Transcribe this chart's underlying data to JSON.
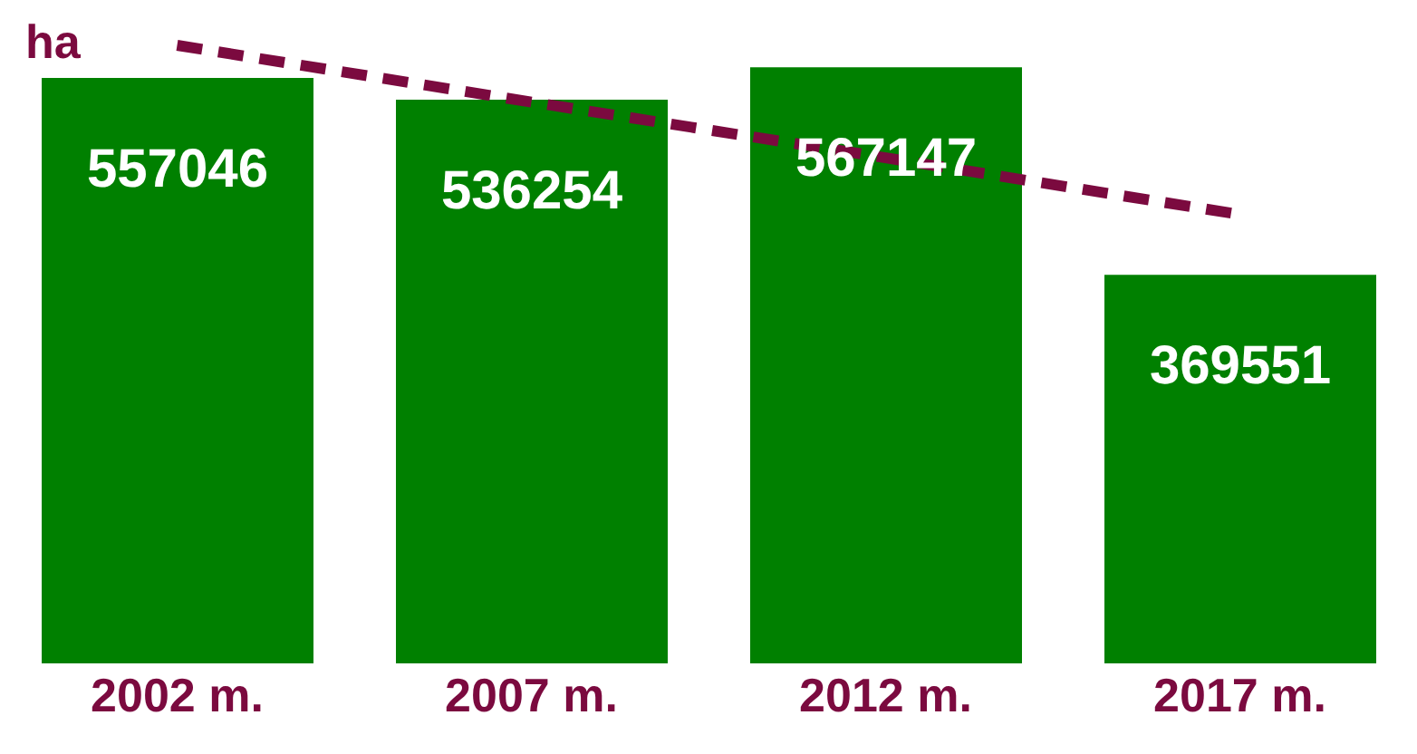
{
  "chart_data": {
    "type": "bar",
    "ylabel": "ha",
    "categories": [
      "2002 m.",
      "2007 m.",
      "2012 m.",
      "2017 m."
    ],
    "series": [
      {
        "color": "#008000",
        "values": [
          557046,
          536254,
          567147,
          369551
        ],
        "value_labels": [
          "557046",
          "536254",
          "567147",
          "369551"
        ]
      },
      {
        "type": "line",
        "color": "#7b0a3f",
        "line_style": "dashed",
        "values": [
          588000,
          534000,
          481000,
          427000
        ]
      }
    ]
  }
}
